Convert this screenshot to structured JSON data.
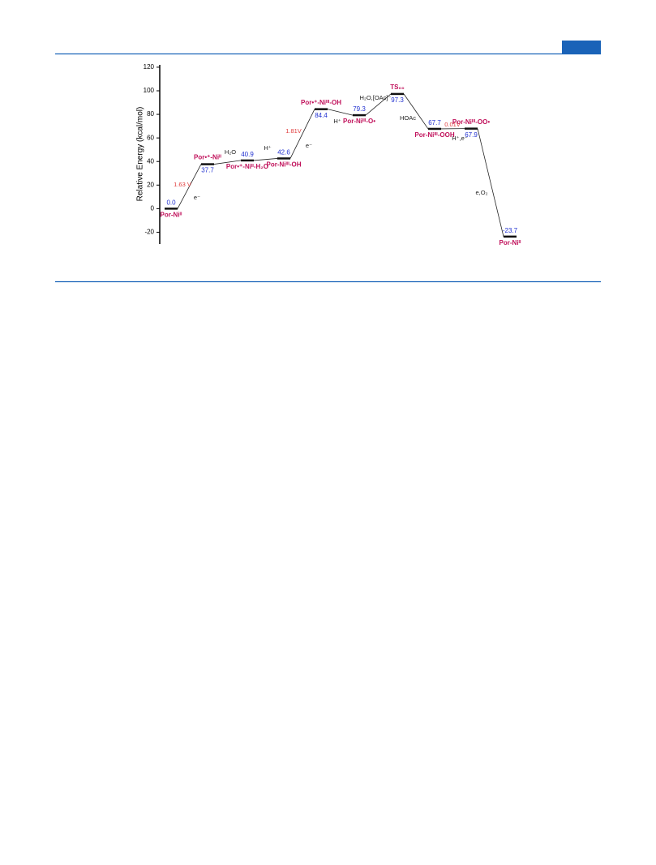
{
  "chart_data": {
    "type": "energy-diagram",
    "y_label": "Relative Energy (kcal/mol)",
    "categories": [
      "Por-Niᴵᴵ",
      "Por•⁺-Niᴵᴵ",
      "Por•⁺-Niᴵᴵ-H₂O",
      "Por-Niᴵᴵᴵ-OH",
      "Por•⁺-Niᴵᴵᴵ-OH",
      "Por-Niᴵᴵᴵ-O•",
      "TS₀₀",
      "Por-Niᴵᴵᴵ-OOH",
      "Por-Niᴵᴵᴵ-OO•",
      "Por-Niᴵᴵ"
    ],
    "values": [
      0,
      37.7,
      40.9,
      42.6,
      84.4,
      79.3,
      97.3,
      67.7,
      67.9,
      -23.7
    ],
    "value_labels": [
      "0.0",
      "37.7",
      "40.9",
      "42.6",
      "84.4",
      "79.3",
      "97.3",
      "67.7",
      "67.9",
      "-23.7"
    ],
    "annotations": [
      {
        "text": "1.63 V",
        "color": "#e03a3a"
      },
      {
        "text": "e⁻",
        "color": "#222222"
      },
      {
        "text": "H₂O",
        "color": "#222222"
      },
      {
        "text": "H⁺",
        "color": "#222222"
      },
      {
        "text": "1.81V",
        "color": "#e03a3a"
      },
      {
        "text": "e⁻",
        "color": "#222222"
      },
      {
        "text": "H⁺",
        "color": "#222222"
      },
      {
        "text": "H₂O,[OAc]⁻",
        "color": "#222222"
      },
      {
        "text": "HOAc",
        "color": "#222222"
      },
      {
        "text": "0.01V",
        "color": "#e03a3a"
      },
      {
        "text": "H⁺,e⁻",
        "color": "#222222"
      },
      {
        "text": "e,O₂",
        "color": "#222222"
      }
    ],
    "ylim": [
      -30,
      122
    ],
    "yticks": [
      -20,
      0,
      20,
      40,
      60,
      80,
      100,
      120
    ],
    "state_color": "#c0105a",
    "value_color": "#2030d0",
    "level_color": "#111111"
  }
}
